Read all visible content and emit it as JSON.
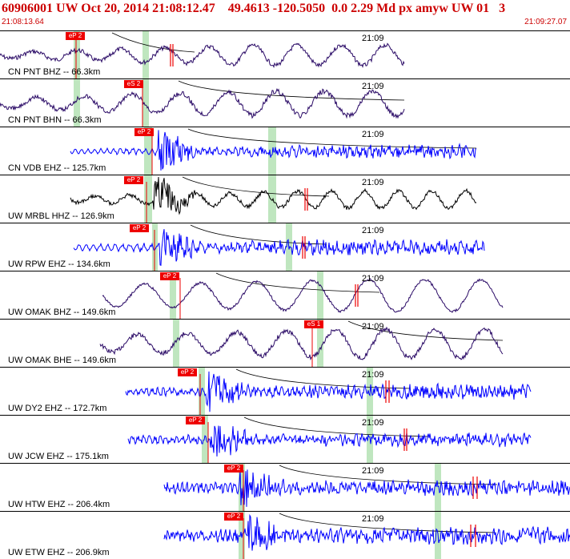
{
  "header": {
    "title": "60906001 UW Oct 20, 2014 21:08:12.47    49.4613 -120.5050  0.0 2.29 Md px amyw UW 01   3",
    "start_time": "21:08:13.64",
    "end_time": "21:09:27.07"
  },
  "colors": {
    "header_text": "#cc0000",
    "pick": "#ee0000",
    "window": "#bfe6bf",
    "trace_blue": "#0000ff",
    "trace_purple": "#2a0a66",
    "trace_black": "#000000"
  },
  "traces": [
    {
      "label": "CN PNT BHZ -- 66.3km",
      "time_label": "21:09",
      "pick": "eP 2",
      "color": "purple"
    },
    {
      "label": "CN PNT BHN -- 66.3km",
      "time_label": "21:09",
      "pick": "eS 2",
      "color": "purple"
    },
    {
      "label": "CN VDB EHZ -- 125.7km",
      "time_label": "21:09",
      "pick": "eP 2",
      "color": "blue"
    },
    {
      "label": "UW MRBL HHZ -- 126.9km",
      "time_label": "21:09",
      "pick": "eP 2",
      "color": "black"
    },
    {
      "label": "UW RPW EHZ -- 134.6km",
      "time_label": "21:09",
      "pick": "eP 2",
      "color": "blue"
    },
    {
      "label": "UW OMAK BHZ -- 149.6km",
      "time_label": "21:09",
      "pick": "eP 2",
      "color": "purple"
    },
    {
      "label": "UW OMAK BHE -- 149.6km",
      "time_label": "21:09",
      "pick": "eS 1",
      "color": "purple"
    },
    {
      "label": "UW DY2 EHZ -- 172.7km",
      "time_label": "21:09",
      "pick": "eP 2",
      "color": "blue"
    },
    {
      "label": "UW JCW EHZ -- 175.1km",
      "time_label": "21:09",
      "pick": "eP 2",
      "color": "blue"
    },
    {
      "label": "UW HTW EHZ -- 206.4km",
      "time_label": "21:09",
      "pick": "eP 2",
      "color": "blue"
    },
    {
      "label": "UW ETW EHZ -- 206.9km",
      "time_label": "21:09",
      "pick": "eP 2",
      "color": "blue"
    }
  ]
}
